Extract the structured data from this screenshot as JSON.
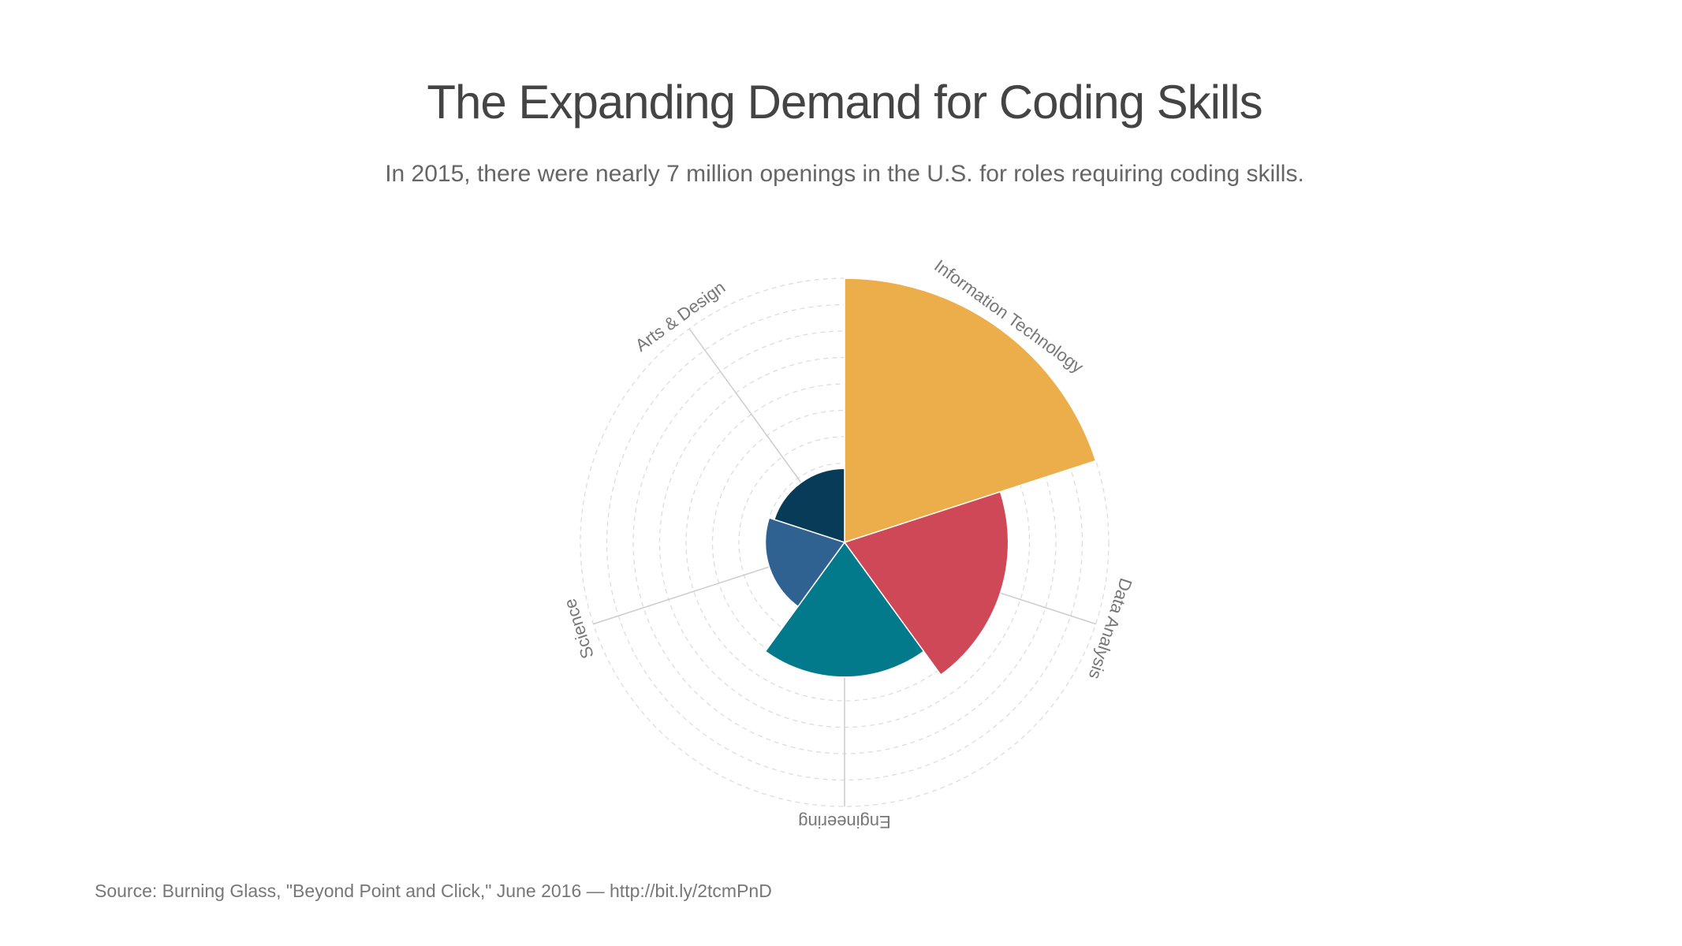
{
  "chart_data": {
    "type": "polar-area",
    "title": "The Expanding Demand for Coding Skills",
    "subtitle": "In 2015, there were nearly 7 million openings in the U.S. for roles requiring coding skills.",
    "source": "Source: Burning Glass, \"Beyond Point and Click,\" June 2016 — http://bit.ly/2tcmPnD",
    "categories": [
      "Information Technology",
      "Data Analysis",
      "Engineering",
      "Science",
      "Arts & Design"
    ],
    "values": [
      10,
      6.2,
      5.1,
      3,
      2.8
    ],
    "colors": [
      "#ecae4a",
      "#cf4858",
      "#027a8b",
      "#2f6290",
      "#073b57"
    ],
    "ylim": [
      0,
      10
    ],
    "yticks": [
      1,
      2,
      3,
      4,
      5,
      6,
      7,
      8,
      9,
      10
    ],
    "grid": true
  }
}
